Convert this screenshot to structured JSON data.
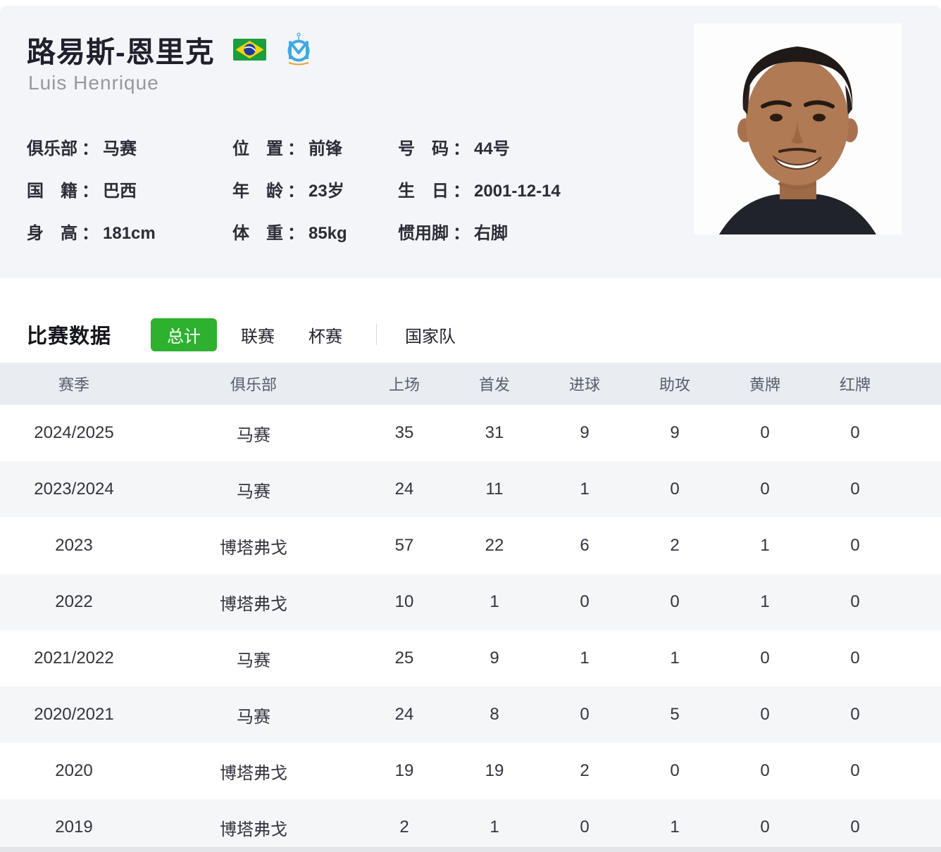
{
  "player": {
    "name_cn": "路易斯-恩里克",
    "name_en": "Luis Henrique",
    "separator": "：",
    "flag_icon": "brazil-flag",
    "badge_icon": "marseille-club-badge",
    "info": [
      {
        "label": "俱乐部",
        "value": "马赛"
      },
      {
        "label": "位　置",
        "value": "前锋"
      },
      {
        "label": "号　码",
        "value": "44号"
      },
      {
        "label": "国　籍",
        "value": "巴西"
      },
      {
        "label": "年　龄",
        "value": "23岁"
      },
      {
        "label": "生　日",
        "value": "2001-12-14"
      },
      {
        "label": "身　高",
        "value": "181cm"
      },
      {
        "label": "体　重",
        "value": "85kg"
      },
      {
        "label": "惯用脚",
        "value": "右脚"
      }
    ]
  },
  "stats": {
    "section_title": "比赛数据",
    "tabs": [
      {
        "label": "总计",
        "active": true
      },
      {
        "label": "联赛",
        "active": false
      },
      {
        "label": "杯赛",
        "active": false
      },
      {
        "label": "国家队",
        "active": false
      }
    ],
    "table": {
      "headers": [
        "赛季",
        "俱乐部",
        "上场",
        "首发",
        "进球",
        "助攻",
        "黄牌",
        "红牌"
      ],
      "rows": [
        [
          "2024/2025",
          "马赛",
          "35",
          "31",
          "9",
          "9",
          "0",
          "0"
        ],
        [
          "2023/2024",
          "马赛",
          "24",
          "11",
          "1",
          "0",
          "0",
          "0"
        ],
        [
          "2023",
          "博塔弗戈",
          "57",
          "22",
          "6",
          "2",
          "1",
          "0"
        ],
        [
          "2022",
          "博塔弗戈",
          "10",
          "1",
          "0",
          "0",
          "1",
          "0"
        ],
        [
          "2021/2022",
          "马赛",
          "25",
          "9",
          "1",
          "1",
          "0",
          "0"
        ],
        [
          "2020/2021",
          "马赛",
          "24",
          "8",
          "0",
          "5",
          "0",
          "0"
        ],
        [
          "2020",
          "博塔弗戈",
          "19",
          "19",
          "2",
          "0",
          "0",
          "0"
        ],
        [
          "2019",
          "博塔弗戈",
          "2",
          "1",
          "0",
          "1",
          "0",
          "0"
        ]
      ]
    }
  },
  "colors": {
    "accent_green": "#2eb12e",
    "card_bg": "#f3f5f9",
    "table_header_bg": "#e9ecf1",
    "row_alt_bg": "#f4f6f8",
    "badge_blue": "#3fa9e0",
    "flag_green": "#1b9e3e",
    "flag_yellow": "#ffd400",
    "flag_blue": "#1d3aa2"
  }
}
